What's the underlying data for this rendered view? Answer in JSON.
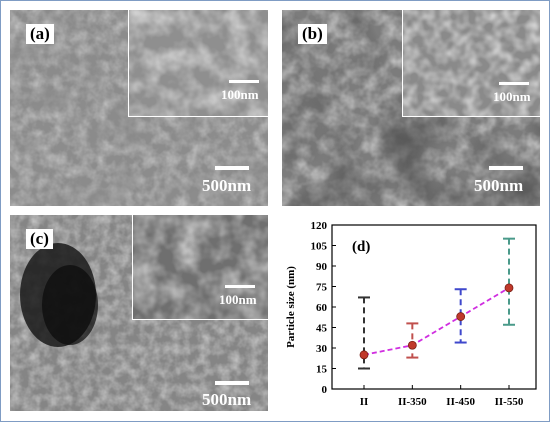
{
  "panels": {
    "a": {
      "label": "(a)",
      "scale": "500nm",
      "inset_scale": "100nm"
    },
    "b": {
      "label": "(b)",
      "scale": "500nm",
      "inset_scale": "100nm"
    },
    "c": {
      "label": "(c)",
      "scale": "500nm",
      "inset_scale": "100nm"
    },
    "d": {
      "label": "(d)"
    }
  },
  "chart_data": {
    "type": "scatter",
    "ylabel": "Particle size (nm)",
    "xlabel": "",
    "categories": [
      "II",
      "II-350",
      "II-450",
      "II-550"
    ],
    "values": [
      25,
      32,
      53,
      74
    ],
    "error_low": [
      15,
      23,
      34,
      47
    ],
    "error_high": [
      67,
      48,
      73,
      110
    ],
    "yticks": [
      0,
      15,
      30,
      45,
      60,
      75,
      90,
      105,
      120
    ],
    "ylim": [
      0,
      120
    ],
    "grid": false,
    "colors": {
      "marker": "#c0392b",
      "trend": "#d02ee0",
      "error_bars": [
        "#333333",
        "#c0504d",
        "#3f48cc",
        "#4a9a8a"
      ]
    }
  }
}
